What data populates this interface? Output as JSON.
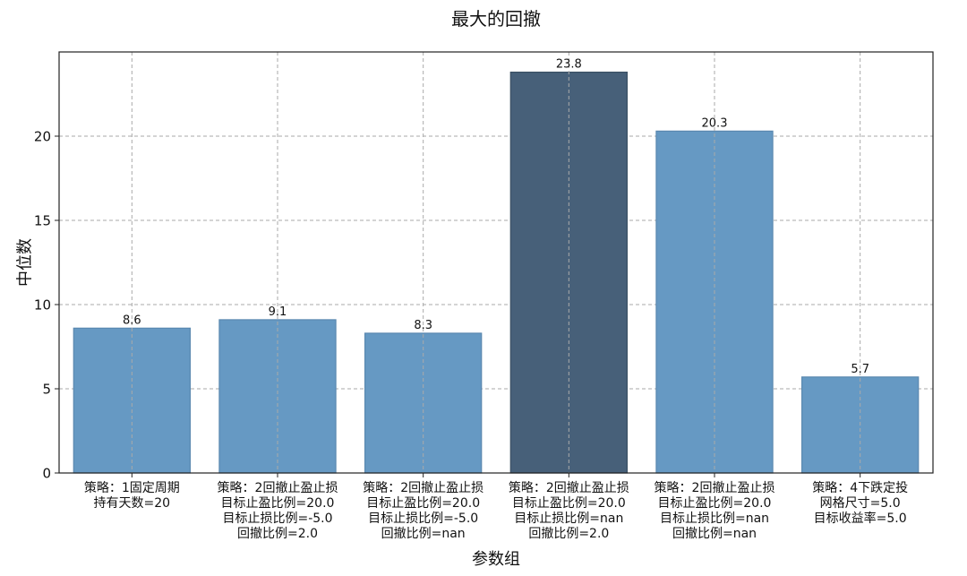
{
  "chart_data": {
    "type": "bar",
    "title": "最大的回撤",
    "xlabel": "参数组",
    "ylabel": "中位数",
    "ylim": [
      0,
      25
    ],
    "yticks": [
      0,
      5,
      10,
      15,
      20
    ],
    "grid": true,
    "categories": [
      [
        "策略：1固定周期",
        "持有天数=20"
      ],
      [
        "策略：2回撤止盈止损",
        "目标止盈比例=20.0",
        "目标止损比例=-5.0",
        "回撤比例=2.0"
      ],
      [
        "策略：2回撤止盈止损",
        "目标止盈比例=20.0",
        "目标止损比例=-5.0",
        "回撤比例=nan"
      ],
      [
        "策略：2回撤止盈止损",
        "目标止盈比例=20.0",
        "目标止损比例=nan",
        "回撤比例=2.0"
      ],
      [
        "策略：2回撤止盈止损",
        "目标止盈比例=20.0",
        "目标止损比例=nan",
        "回撤比例=nan"
      ],
      [
        "策略：4下跌定投",
        "网格尺寸=5.0",
        "目标收益率=5.0"
      ]
    ],
    "values": [
      8.6,
      9.1,
      8.3,
      23.8,
      20.3,
      5.7
    ],
    "data_labels": [
      "8.6",
      "9.1",
      "8.3",
      "23.8",
      "20.3",
      "5.7"
    ],
    "highlight_index": 3,
    "colors": {
      "bar": "#6699c3",
      "bar_edge": "#5a88b0",
      "highlight": "#476079",
      "highlight_edge": "#3a4f63",
      "grid": "#aaaaaa",
      "axis": "#222222"
    }
  }
}
